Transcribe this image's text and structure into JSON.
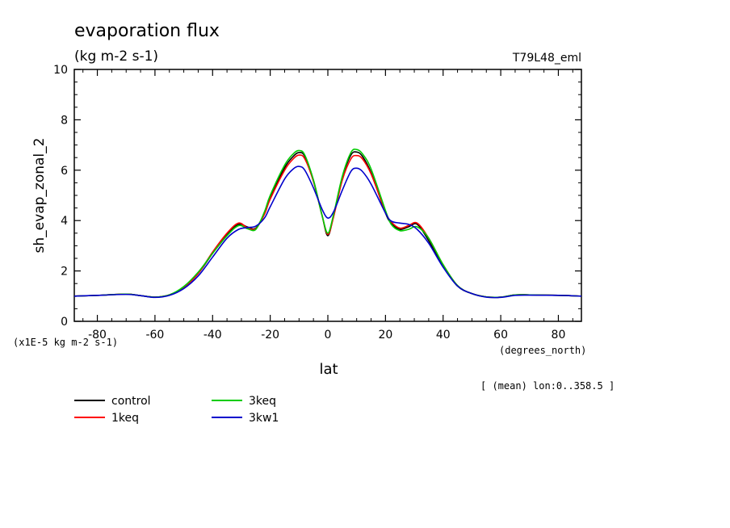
{
  "chart_data": {
    "type": "line",
    "title": "evaporation flux",
    "subtitle": "(kg m-2 s-1)",
    "run_label": "T79L48_eml",
    "ylabel": "sh_evap_zonal_2",
    "xlabel": "lat",
    "x_units": "(degrees_north)",
    "y_scale_note": "(x1E-5 kg m-2 s-1)",
    "footnote": "[ (mean) lon:0..358.5 ]",
    "xlim": [
      -88,
      88
    ],
    "ylim": [
      0,
      10
    ],
    "x_ticks": [
      -80,
      -60,
      -40,
      -20,
      0,
      20,
      40,
      60,
      80
    ],
    "y_ticks": [
      0,
      2,
      4,
      6,
      8,
      10
    ],
    "x_tick_labels": [
      "-80",
      "-60",
      "-40",
      "-20",
      "0",
      "20",
      "40",
      "60",
      "80"
    ],
    "y_tick_labels": [
      "0",
      "2",
      "4",
      "6",
      "8",
      "10"
    ],
    "grid": false,
    "legend_placement": "bottom-left",
    "x": [
      -88,
      -80,
      -70,
      -65,
      -60,
      -55,
      -50,
      -45,
      -40,
      -35,
      -31,
      -28,
      -25,
      -22,
      -20,
      -15,
      -12,
      -10,
      -8,
      -5,
      -2,
      0,
      2,
      5,
      8,
      10,
      12,
      15,
      20,
      22,
      25,
      28,
      31,
      35,
      40,
      45,
      50,
      55,
      60,
      65,
      70,
      80,
      88
    ],
    "series": [
      {
        "name": "control",
        "color": "#000000",
        "values": [
          1.0,
          1.03,
          1.08,
          1.02,
          0.96,
          1.05,
          1.35,
          1.9,
          2.7,
          3.45,
          3.85,
          3.75,
          3.7,
          4.3,
          4.9,
          6.1,
          6.55,
          6.7,
          6.55,
          5.6,
          4.2,
          3.4,
          4.2,
          5.7,
          6.6,
          6.72,
          6.55,
          5.9,
          4.3,
          3.9,
          3.65,
          3.75,
          3.85,
          3.2,
          2.2,
          1.4,
          1.1,
          0.97,
          0.96,
          1.05,
          1.05,
          1.03,
          1.0
        ]
      },
      {
        "name": "1keq",
        "color": "#ff0000",
        "values": [
          1.0,
          1.03,
          1.08,
          1.02,
          0.96,
          1.05,
          1.35,
          1.9,
          2.75,
          3.5,
          3.9,
          3.72,
          3.68,
          4.25,
          4.85,
          6.0,
          6.45,
          6.6,
          6.45,
          5.55,
          4.2,
          3.45,
          4.15,
          5.6,
          6.45,
          6.58,
          6.45,
          5.85,
          4.35,
          3.95,
          3.7,
          3.8,
          3.9,
          3.3,
          2.25,
          1.42,
          1.1,
          0.97,
          0.96,
          1.05,
          1.05,
          1.03,
          1.0
        ]
      },
      {
        "name": "3keq",
        "color": "#00cc00",
        "values": [
          1.0,
          1.03,
          1.08,
          1.02,
          0.96,
          1.05,
          1.38,
          1.95,
          2.7,
          3.4,
          3.8,
          3.68,
          3.65,
          4.35,
          5.0,
          6.2,
          6.65,
          6.78,
          6.6,
          5.6,
          4.2,
          3.5,
          4.25,
          5.75,
          6.7,
          6.82,
          6.65,
          6.05,
          4.4,
          3.85,
          3.6,
          3.65,
          3.75,
          3.3,
          2.25,
          1.42,
          1.1,
          0.97,
          0.96,
          1.05,
          1.05,
          1.03,
          1.0
        ]
      },
      {
        "name": "3kw1",
        "color": "#0000cc",
        "values": [
          1.0,
          1.03,
          1.07,
          1.02,
          0.95,
          1.03,
          1.3,
          1.8,
          2.55,
          3.3,
          3.65,
          3.72,
          3.78,
          4.1,
          4.55,
          5.65,
          6.05,
          6.15,
          6.0,
          5.3,
          4.45,
          4.1,
          4.35,
          5.2,
          5.95,
          6.08,
          5.95,
          5.45,
          4.3,
          3.98,
          3.9,
          3.85,
          3.65,
          3.1,
          2.15,
          1.4,
          1.1,
          0.96,
          0.95,
          1.03,
          1.04,
          1.03,
          1.0
        ]
      }
    ]
  }
}
